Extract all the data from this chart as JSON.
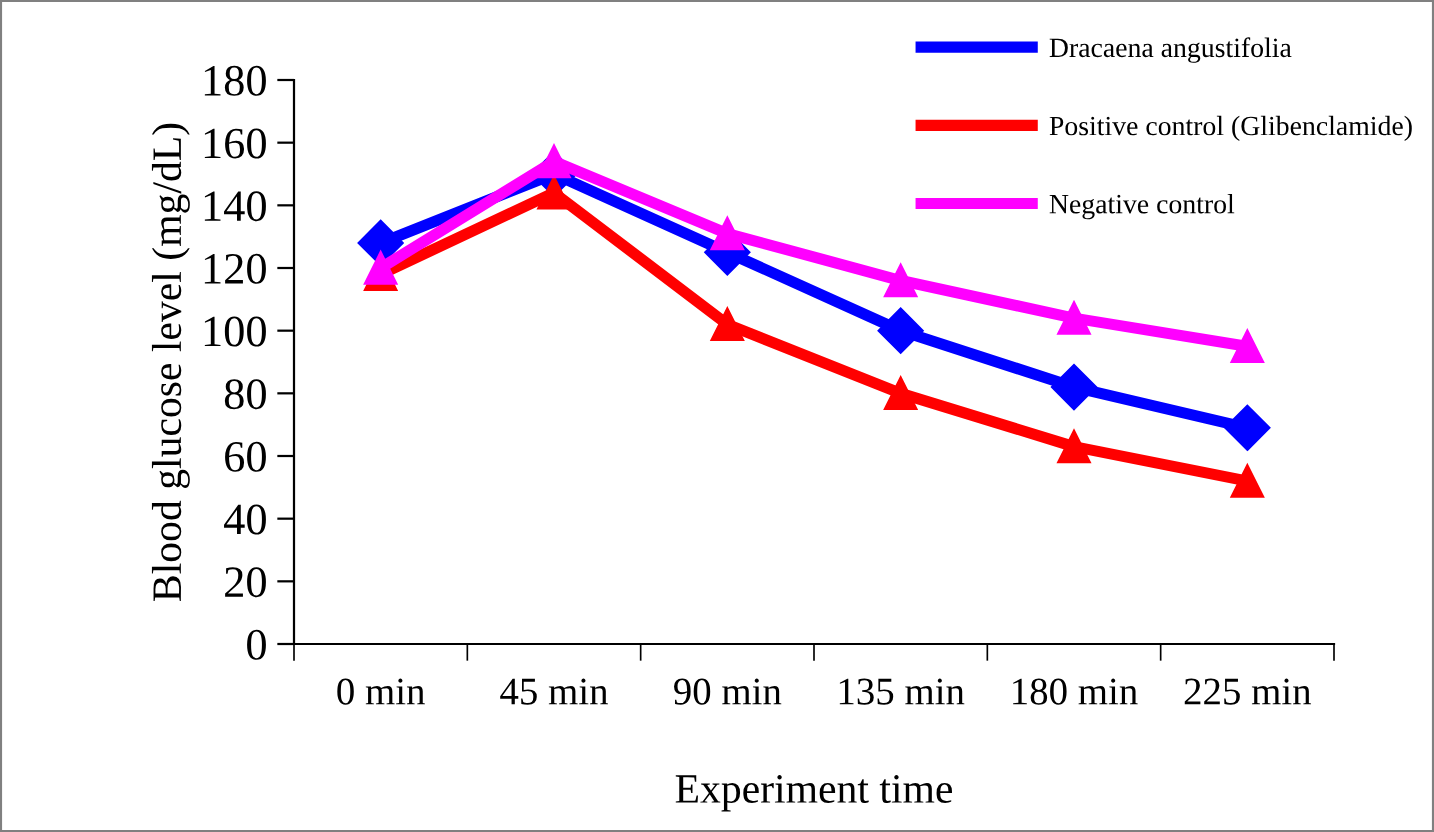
{
  "chart_data": {
    "type": "line",
    "xlabel": "Experiment time",
    "ylabel": "Blood glucose level (mg/dL)",
    "categories": [
      "0 min",
      "45 min",
      "90 min",
      "135 min",
      "180 min",
      "225 min"
    ],
    "ylim": [
      0,
      180
    ],
    "yticks": [
      0,
      20,
      40,
      60,
      80,
      100,
      120,
      140,
      160,
      180
    ],
    "grid": false,
    "legend": "top right",
    "series": [
      {
        "name": "Dracaena angustifolia",
        "color": "#0000ff",
        "marker": "diamond",
        "values": [
          128,
          150,
          125,
          100,
          82,
          69
        ]
      },
      {
        "name": "Positive control (Glibenclamide)",
        "color": "#ff0000",
        "marker": "triangle",
        "values": [
          118,
          144,
          102,
          80,
          63,
          52
        ]
      },
      {
        "name": "Negative control",
        "color": "#ff00ff",
        "marker": "triangle",
        "values": [
          120,
          154,
          131,
          116,
          104,
          95
        ]
      }
    ]
  }
}
